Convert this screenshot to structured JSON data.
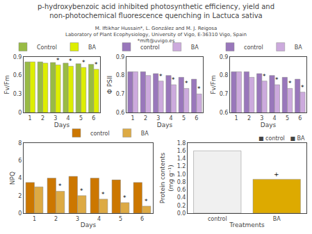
{
  "title": "p-hydroxybenzoic acid inhibited photosynthetic efficiency, yield and\nnon-photochemical fluorescence quenching in Lactuca sativa",
  "subtitle": "M. Iftikhar Hussain*, L. González and M. J. Reigosa\nLaboratory of Plant Ecophysiology, University of Vigo, E-36310 Vigo, Spain\n*mift@uvigo.es",
  "chart_data": [
    {
      "type": "bar",
      "categories": [
        "1",
        "2",
        "3",
        "4",
        "5",
        "6"
      ],
      "xlabel": "Days",
      "ylabel": "Fv/Fm",
      "ylim": [
        0.0,
        0.9
      ],
      "yticks": [
        0,
        0.3,
        0.6,
        0.9
      ],
      "grid": false,
      "legend": "top",
      "series": [
        {
          "name": "Control",
          "color": "#99bb44",
          "values": [
            0.82,
            0.82,
            0.81,
            0.8,
            0.79,
            0.78
          ]
        },
        {
          "name": "BA",
          "color": "#ddee00",
          "values": [
            0.82,
            0.8,
            0.77,
            0.75,
            0.73,
            0.7
          ]
        }
      ],
      "annotations": [
        {
          "x": "3",
          "series": "BA",
          "text": "*"
        },
        {
          "x": "4",
          "series": "BA",
          "text": "*"
        },
        {
          "x": "5",
          "series": "BA",
          "text": "*"
        },
        {
          "x": "6",
          "series": "BA",
          "text": "*"
        }
      ]
    },
    {
      "type": "bar",
      "categories": [
        "1",
        "2",
        "3",
        "4",
        "5",
        "6"
      ],
      "xlabel": "Days",
      "ylabel": "Φ PSII",
      "ylim": [
        0.6,
        0.9
      ],
      "yticks": [
        0.6,
        0.7,
        0.8,
        0.9
      ],
      "grid": false,
      "legend": "top",
      "series": [
        {
          "name": "control",
          "color": "#9977bb",
          "values": [
            0.82,
            0.82,
            0.81,
            0.8,
            0.79,
            0.78
          ]
        },
        {
          "name": "BA",
          "color": "#ccaadd",
          "values": [
            0.82,
            0.8,
            0.77,
            0.75,
            0.73,
            0.7
          ]
        }
      ],
      "annotations": [
        {
          "x": "3",
          "series": "BA",
          "text": "*"
        },
        {
          "x": "4",
          "series": "BA",
          "text": "*"
        },
        {
          "x": "5",
          "series": "BA",
          "text": "*"
        },
        {
          "x": "6",
          "series": "BA",
          "text": "*"
        }
      ]
    },
    {
      "type": "bar",
      "categories": [
        "1",
        "2",
        "3",
        "4",
        "5",
        "6"
      ],
      "xlabel": "Days",
      "ylabel": "Fv/Fm",
      "ylim": [
        0.6,
        0.9
      ],
      "yticks": [
        0.6,
        0.7,
        0.8,
        0.9
      ],
      "grid": false,
      "legend": "top",
      "series": [
        {
          "name": "control",
          "color": "#9977bb",
          "values": [
            0.82,
            0.82,
            0.81,
            0.8,
            0.79,
            0.78
          ]
        },
        {
          "name": "BA",
          "color": "#ccaadd",
          "values": [
            0.82,
            0.79,
            0.77,
            0.75,
            0.73,
            0.71
          ]
        }
      ],
      "annotations": [
        {
          "x": "3",
          "series": "BA",
          "text": "*"
        },
        {
          "x": "4",
          "series": "BA",
          "text": "*"
        },
        {
          "x": "5",
          "series": "BA",
          "text": "*"
        },
        {
          "x": "6",
          "series": "BA",
          "text": "*"
        }
      ]
    },
    {
      "type": "bar",
      "categories": [
        "1",
        "2",
        "3",
        "4",
        "5",
        "6"
      ],
      "xlabel": "Days",
      "ylabel": "NPQ",
      "ylim": [
        0,
        8
      ],
      "yticks": [
        0,
        2,
        4,
        6,
        8
      ],
      "grid": false,
      "legend": "top",
      "series": [
        {
          "name": "control",
          "color": "#cc7700",
          "values": [
            3.5,
            4.0,
            4.2,
            4.0,
            3.8,
            3.5
          ]
        },
        {
          "name": "BA",
          "color": "#ddaa44",
          "values": [
            3.0,
            2.5,
            2.0,
            1.6,
            1.2,
            0.8
          ]
        }
      ],
      "annotations": [
        {
          "x": "2",
          "series": "BA",
          "text": "*"
        },
        {
          "x": "3",
          "series": "BA",
          "text": "*"
        },
        {
          "x": "4",
          "series": "BA",
          "text": "*"
        },
        {
          "x": "5",
          "series": "BA",
          "text": "*"
        },
        {
          "x": "6",
          "series": "BA",
          "text": "*"
        }
      ]
    },
    {
      "type": "bar",
      "categories": [
        "control",
        "BA"
      ],
      "values": [
        1.6,
        0.87
      ],
      "colors": [
        "#f0f0f0",
        "#ddaa00"
      ],
      "xlabel": "Treatments",
      "ylabel": "Protein contents\n(mg g⁻¹)",
      "ylim": [
        0.0,
        1.8
      ],
      "yticks": [
        {
          "value": 0.0,
          "label": "0.0"
        },
        0.2,
        0.4,
        0.6,
        0.8,
        {
          "value": 1.0,
          "label": "1.0"
        },
        1.2,
        1.4,
        1.6,
        1.8
      ],
      "grid": false,
      "annotations": [
        {
          "x": "BA",
          "text": "+"
        },
        {
          "text": "■ control   ■ BA"
        }
      ]
    }
  ]
}
